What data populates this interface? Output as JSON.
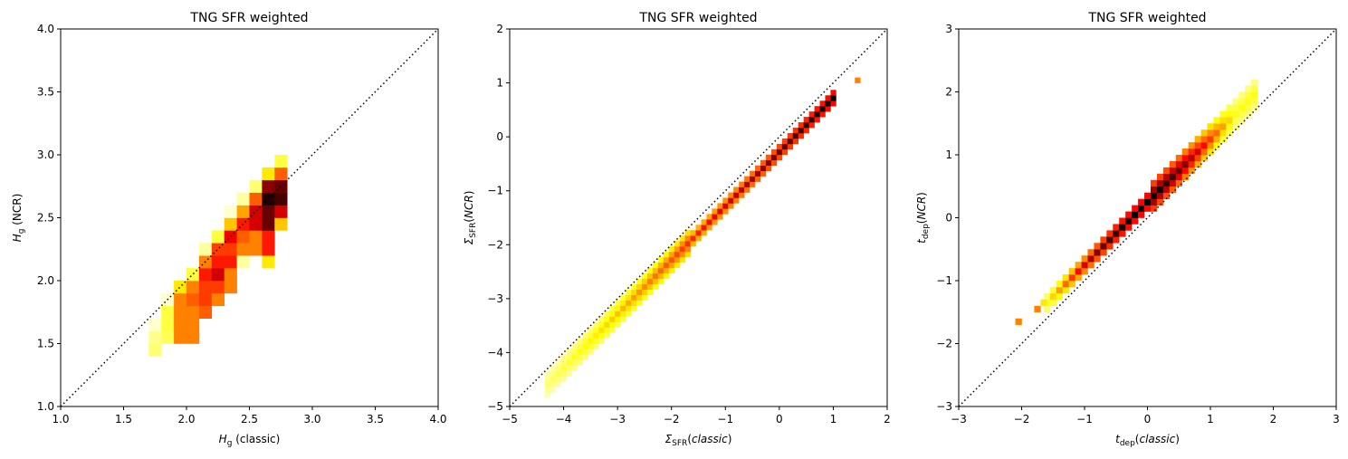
{
  "chart_data": [
    {
      "type": "heatmap",
      "title": "TNG SFR weighted",
      "xlabel_base": "H",
      "xlabel_sub": "g",
      "xlabel_suffix": " (classic)",
      "ylabel_base": "H",
      "ylabel_sub": "g",
      "ylabel_suffix": " (NCR)",
      "xlim": [
        1.0,
        4.0
      ],
      "ylim": [
        1.0,
        4.0
      ],
      "xticks": [
        "1.0",
        "1.5",
        "2.0",
        "2.5",
        "3.0",
        "3.5",
        "4.0"
      ],
      "yticks": [
        "1.0",
        "1.5",
        "2.0",
        "2.5",
        "3.0",
        "3.5",
        "4.0"
      ],
      "xtick_values": [
        1.0,
        1.5,
        2.0,
        2.5,
        3.0,
        3.5,
        4.0
      ],
      "ytick_values": [
        1.0,
        1.5,
        2.0,
        2.5,
        3.0,
        3.5,
        4.0
      ],
      "diagonal": "dotted",
      "bin_width": 0.1,
      "bins": [
        [
          1.75,
          1.45,
          0.15
        ],
        [
          1.75,
          1.55,
          0.12
        ],
        [
          1.75,
          1.65,
          0.05
        ],
        [
          1.85,
          1.55,
          0.18
        ],
        [
          1.85,
          1.65,
          0.2
        ],
        [
          1.85,
          1.75,
          0.2
        ],
        [
          1.85,
          1.85,
          0.05
        ],
        [
          1.95,
          1.55,
          0.45
        ],
        [
          1.95,
          1.65,
          0.45
        ],
        [
          1.95,
          1.75,
          0.45
        ],
        [
          1.95,
          1.85,
          0.45
        ],
        [
          1.95,
          1.95,
          0.3
        ],
        [
          2.05,
          1.55,
          0.45
        ],
        [
          2.05,
          1.65,
          0.45
        ],
        [
          2.05,
          1.75,
          0.45
        ],
        [
          2.05,
          1.85,
          0.5
        ],
        [
          2.05,
          1.95,
          0.45
        ],
        [
          2.05,
          2.05,
          0.2
        ],
        [
          2.15,
          1.75,
          0.5
        ],
        [
          2.15,
          1.85,
          0.55
        ],
        [
          2.15,
          1.95,
          0.55
        ],
        [
          2.15,
          2.05,
          0.6
        ],
        [
          2.15,
          2.15,
          0.45
        ],
        [
          2.15,
          2.25,
          0.1
        ],
        [
          2.25,
          1.85,
          0.45
        ],
        [
          2.25,
          1.95,
          0.55
        ],
        [
          2.25,
          2.05,
          0.7
        ],
        [
          2.25,
          2.15,
          0.6
        ],
        [
          2.25,
          2.25,
          0.55
        ],
        [
          2.25,
          2.35,
          0.2
        ],
        [
          2.35,
          1.95,
          0.45
        ],
        [
          2.35,
          2.05,
          0.45
        ],
        [
          2.35,
          2.15,
          0.6
        ],
        [
          2.35,
          2.25,
          0.55
        ],
        [
          2.35,
          2.35,
          0.65
        ],
        [
          2.35,
          2.45,
          0.35
        ],
        [
          2.35,
          2.55,
          0.05
        ],
        [
          2.45,
          2.15,
          0.1
        ],
        [
          2.45,
          2.25,
          0.45
        ],
        [
          2.45,
          2.35,
          0.5
        ],
        [
          2.45,
          2.45,
          0.6
        ],
        [
          2.45,
          2.55,
          0.4
        ],
        [
          2.45,
          2.65,
          0.1
        ],
        [
          2.55,
          2.25,
          0.45
        ],
        [
          2.55,
          2.35,
          0.45
        ],
        [
          2.55,
          2.45,
          0.7
        ],
        [
          2.55,
          2.55,
          0.7
        ],
        [
          2.55,
          2.65,
          0.5
        ],
        [
          2.55,
          2.75,
          0.15
        ],
        [
          2.65,
          2.15,
          0.3
        ],
        [
          2.65,
          2.25,
          0.6
        ],
        [
          2.65,
          2.35,
          0.6
        ],
        [
          2.65,
          2.45,
          0.85
        ],
        [
          2.65,
          2.55,
          0.85
        ],
        [
          2.65,
          2.65,
          0.95
        ],
        [
          2.65,
          2.75,
          0.8
        ],
        [
          2.65,
          2.85,
          0.3
        ],
        [
          2.75,
          2.45,
          0.35
        ],
        [
          2.75,
          2.55,
          0.7
        ],
        [
          2.75,
          2.65,
          0.9
        ],
        [
          2.75,
          2.75,
          0.85
        ],
        [
          2.75,
          2.85,
          0.5
        ],
        [
          2.75,
          2.95,
          0.2
        ]
      ]
    },
    {
      "type": "heatmap",
      "title": "TNG SFR weighted",
      "xlabel_base": "Σ",
      "xlabel_sub": "SFR",
      "xlabel_suffix": "(classic)",
      "ylabel_base": "Σ",
      "ylabel_sub": "SFR",
      "ylabel_suffix": "(NCR)",
      "xlim": [
        -5,
        2
      ],
      "ylim": [
        -5,
        2
      ],
      "xticks": [
        "−5",
        "−4",
        "−3",
        "−2",
        "−1",
        "0",
        "1",
        "2"
      ],
      "yticks": [
        "−5",
        "−4",
        "−3",
        "−2",
        "−1",
        "0",
        "1",
        "2"
      ],
      "xtick_values": [
        -5,
        -4,
        -3,
        -2,
        -1,
        0,
        1,
        2
      ],
      "ytick_values": [
        -5,
        -4,
        -3,
        -2,
        -1,
        0,
        1,
        2
      ],
      "diagonal": "dotted",
      "bin_width": 0.1,
      "band": {
        "x_start": -4.3,
        "x_end": 0.95,
        "offset": -0.28,
        "halfwidth_start": 2,
        "halfwidth_end": 1
      },
      "extra_bins": [
        [
          1.45,
          1.05,
          0.45
        ]
      ]
    },
    {
      "type": "heatmap",
      "title": "TNG SFR weighted",
      "xlabel_base": "t",
      "xlabel_sub": "dep",
      "xlabel_suffix": "(classic)",
      "ylabel_base": "t",
      "ylabel_sub": "dep",
      "ylabel_suffix": "(NCR)",
      "xlim": [
        -3,
        3
      ],
      "ylim": [
        -3,
        3
      ],
      "xticks": [
        "−3",
        "−2",
        "−1",
        "0",
        "1",
        "2",
        "3"
      ],
      "yticks": [
        "−3",
        "−2",
        "−1",
        "0",
        "1",
        "2",
        "3"
      ],
      "xtick_values": [
        -3,
        -2,
        -1,
        0,
        1,
        2,
        3
      ],
      "ytick_values": [
        -3,
        -2,
        -1,
        0,
        1,
        2,
        3
      ],
      "diagonal": "dotted",
      "bin_width": 0.1,
      "band": {
        "x_start": -1.6,
        "x_end": 1.7,
        "offset": 0.25,
        "halfwidth_start": 1,
        "halfwidth_end": 2
      },
      "extra_bins": [
        [
          -2.05,
          -1.65,
          0.45
        ],
        [
          -1.75,
          -1.45,
          0.45
        ],
        [
          -1.65,
          -1.35,
          0.3
        ]
      ]
    }
  ]
}
